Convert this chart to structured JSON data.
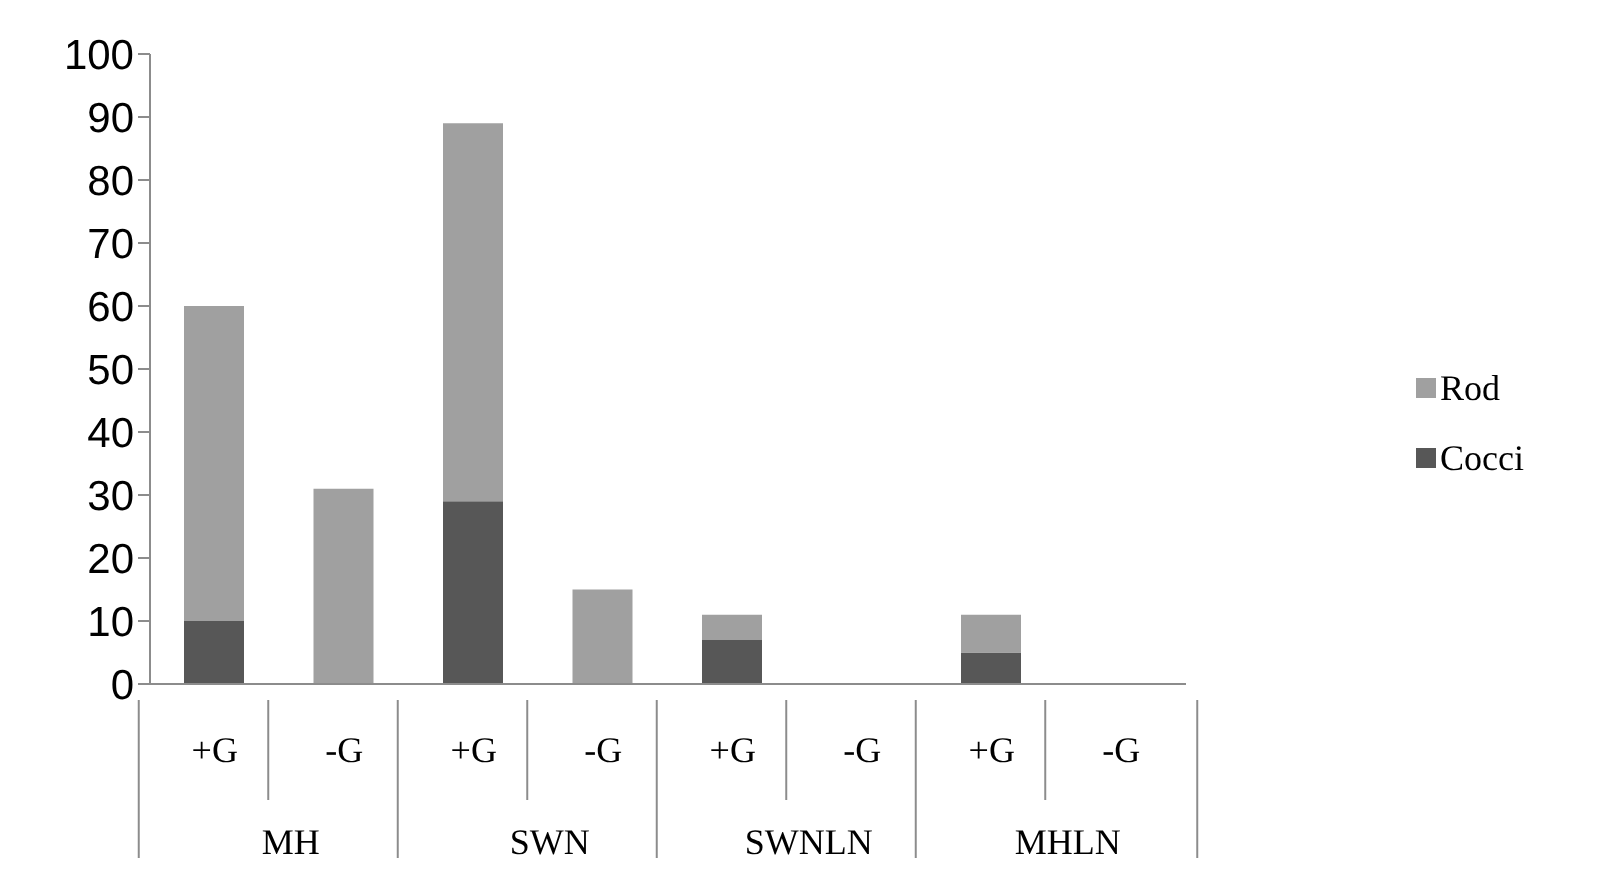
{
  "chart_data": {
    "type": "bar",
    "stacked": true,
    "categories": [
      "+G",
      "-G",
      "+G",
      "-G",
      "+G",
      "-G",
      "+G",
      "-G"
    ],
    "annotations": [
      "MH",
      "SWN",
      "SWNLN",
      "MHLN"
    ],
    "series": [
      {
        "name": "Cocci",
        "color": "#575757",
        "values": [
          10,
          0,
          29,
          0,
          7,
          0,
          5,
          0
        ]
      },
      {
        "name": "Rod",
        "color": "#a0a0a0",
        "values": [
          50,
          31,
          60,
          15,
          4,
          0,
          6,
          0
        ]
      }
    ],
    "ylim": [
      0,
      100
    ],
    "yticks": [
      0,
      10,
      20,
      30,
      40,
      50,
      60,
      70,
      80,
      90,
      100
    ],
    "grid": false,
    "legend": "right"
  }
}
